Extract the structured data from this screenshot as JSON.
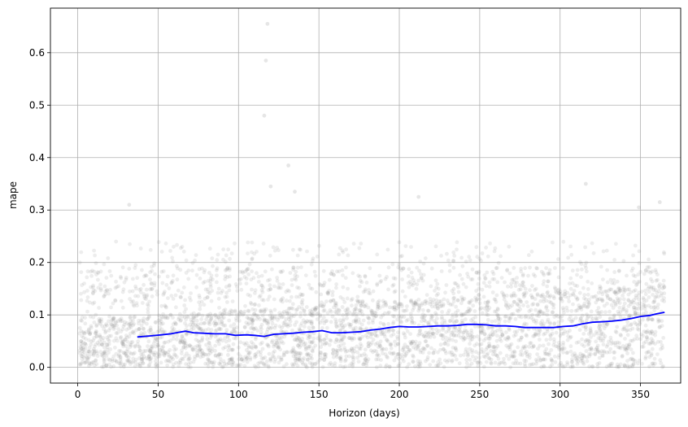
{
  "chart_data": {
    "type": "scatter",
    "xlabel": "Horizon (days)",
    "ylabel": "mape",
    "xlim": [
      -17,
      375
    ],
    "ylim": [
      -0.03,
      0.685
    ],
    "grid": true,
    "x_ticks": [
      0,
      50,
      100,
      150,
      200,
      250,
      300,
      350
    ],
    "y_ticks": [
      0.0,
      0.1,
      0.2,
      0.3,
      0.4,
      0.5,
      0.6
    ],
    "y_tick_labels": [
      "0.0",
      "0.1",
      "0.2",
      "0.3",
      "0.4",
      "0.5",
      "0.6"
    ],
    "colors": {
      "points": "#808080",
      "line": "#0000ff",
      "grid": "#b0b0b0",
      "axes": "#000000"
    },
    "series": [
      {
        "kind": "scatter",
        "point_count": 3650,
        "x_range": [
          1,
          365
        ],
        "y_range": [
          0.0,
          0.66
        ],
        "outliers": [
          {
            "x": 118,
            "y": 0.655
          },
          {
            "x": 117,
            "y": 0.585
          },
          {
            "x": 116,
            "y": 0.48
          },
          {
            "x": 131,
            "y": 0.385
          },
          {
            "x": 120,
            "y": 0.345
          },
          {
            "x": 135,
            "y": 0.335
          },
          {
            "x": 212,
            "y": 0.325
          },
          {
            "x": 349,
            "y": 0.305
          },
          {
            "x": 362,
            "y": 0.315
          },
          {
            "x": 32,
            "y": 0.31
          },
          {
            "x": 316,
            "y": 0.35
          }
        ]
      },
      {
        "kind": "line",
        "x": [
          37,
          45,
          52,
          58,
          63,
          67,
          72,
          78,
          85,
          92,
          98,
          105,
          110,
          116,
          122,
          128,
          134,
          140,
          146,
          152,
          158,
          164,
          170,
          176,
          182,
          188,
          194,
          200,
          206,
          212,
          218,
          224,
          230,
          236,
          242,
          248,
          254,
          260,
          266,
          272,
          278,
          284,
          290,
          296,
          302,
          308,
          314,
          320,
          326,
          332,
          338,
          344,
          350,
          356,
          360,
          365
        ],
        "y": [
          0.058,
          0.06,
          0.062,
          0.064,
          0.067,
          0.069,
          0.066,
          0.065,
          0.064,
          0.064,
          0.061,
          0.062,
          0.061,
          0.059,
          0.063,
          0.064,
          0.065,
          0.067,
          0.068,
          0.07,
          0.066,
          0.066,
          0.067,
          0.068,
          0.071,
          0.073,
          0.076,
          0.078,
          0.077,
          0.077,
          0.078,
          0.079,
          0.079,
          0.08,
          0.082,
          0.082,
          0.081,
          0.079,
          0.079,
          0.078,
          0.076,
          0.076,
          0.076,
          0.076,
          0.078,
          0.079,
          0.083,
          0.086,
          0.087,
          0.088,
          0.09,
          0.093,
          0.097,
          0.099,
          0.102,
          0.105
        ]
      }
    ]
  }
}
